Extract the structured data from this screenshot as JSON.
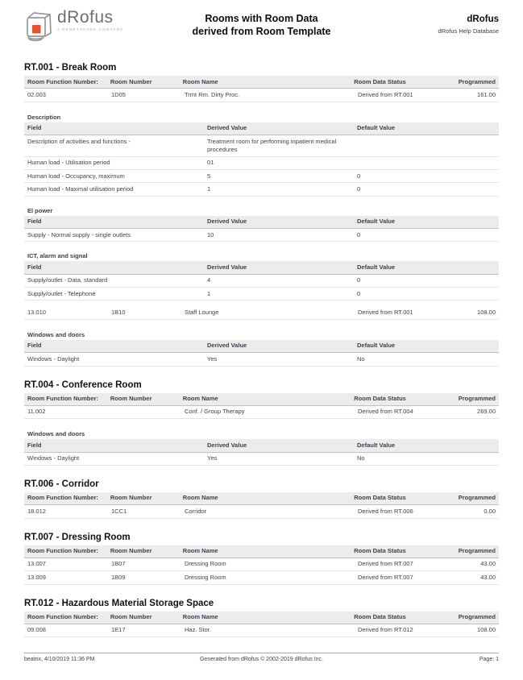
{
  "header": {
    "logo_icon": "drofus-cube-icon",
    "logo_name": "dRofus",
    "logo_tagline": "A NEMETSCHEK COMPANY",
    "title_line1": "Rooms with Room Data",
    "title_line2": "derived from Room Template",
    "right_title": "dRofus",
    "right_subtitle": "dRofus Help Database"
  },
  "colors": {
    "brand_orange": "#e8522e",
    "text": "#3b424d",
    "table_header_bg": "#ececec"
  },
  "room_table_headers": [
    "Room Function Number:",
    "Room Number",
    "Room Name",
    "Room Data Status",
    "Programmed"
  ],
  "field_table_headers": [
    "Field",
    "Derived Value",
    "Default Value"
  ],
  "sections": [
    {
      "title": "RT.001 - Break Room",
      "blocks": [
        {
          "type": "room_header"
        },
        {
          "type": "room_row",
          "cells": [
            "02.003",
            "1D05",
            "Trmt Rm. Dirty Proc.",
            "Derived from RT.001",
            "161.00"
          ]
        },
        {
          "type": "field_group",
          "label": "Description",
          "rows": [
            [
              "Description of activities and functions -",
              "Treatment room for performing inpatient medical procedures",
              ""
            ],
            [
              "Human load - Utilisation period",
              "01",
              ""
            ],
            [
              "Human load - Occupancy, maximum",
              "5",
              "0"
            ],
            [
              "Human load - Maximal utilisation period",
              "1",
              "0"
            ]
          ]
        },
        {
          "type": "field_group",
          "label": "El power",
          "rows": [
            [
              "Supply - Normal supply - single outlets",
              "10",
              "0"
            ]
          ]
        },
        {
          "type": "field_group",
          "label": "ICT, alarm and signal",
          "rows": [
            [
              "Supply/outlet - Data, standard",
              "4",
              "0"
            ],
            [
              "Supply/outlet - Telephone",
              "1",
              "0"
            ]
          ]
        },
        {
          "type": "room_row",
          "cells": [
            "13.010",
            "1B10",
            "Staff Lounge",
            "Derived from RT.001",
            "108.00"
          ]
        },
        {
          "type": "field_group",
          "label": "Windows and doors",
          "rows": [
            [
              "Windows - Daylight",
              "Yes",
              "No"
            ]
          ]
        }
      ]
    },
    {
      "title": "RT.004 - Conference Room",
      "blocks": [
        {
          "type": "room_header"
        },
        {
          "type": "room_row",
          "cells": [
            "11.002",
            "",
            "Conf. / Group Therapy",
            "Derived from RT.004",
            "269.00"
          ]
        },
        {
          "type": "field_group",
          "label": "Windows and doors",
          "rows": [
            [
              "Windows - Daylight",
              "Yes",
              "No"
            ]
          ]
        }
      ]
    },
    {
      "title": "RT.006 - Corridor",
      "blocks": [
        {
          "type": "room_header"
        },
        {
          "type": "room_row",
          "cells": [
            "18.012",
            "1CC1",
            "Corridor",
            "Derived from RT.006",
            "0.00"
          ]
        }
      ]
    },
    {
      "title": "RT.007 - Dressing Room",
      "blocks": [
        {
          "type": "room_header"
        },
        {
          "type": "room_row",
          "cells": [
            "13.007",
            "1B07",
            "Dressing Room",
            "Derived from RT.007",
            "43.00"
          ]
        },
        {
          "type": "room_row",
          "cells": [
            "13.009",
            "1B09",
            "Dressing Room",
            "Derived from RT.007",
            "43.00"
          ]
        }
      ]
    },
    {
      "title": "RT.012 - Hazardous Material Storage Space",
      "blocks": [
        {
          "type": "room_header"
        },
        {
          "type": "room_row",
          "cells": [
            "09.008",
            "1E17",
            "Haz. Stor.",
            "Derived from RT.012",
            "108.00"
          ]
        }
      ]
    }
  ],
  "footer": {
    "left": "beatrix, 4/10/2019 11:36 PM",
    "center": "Generated from dRofus © 2002-2019 dRofus Inc.",
    "right": "Page: 1"
  }
}
